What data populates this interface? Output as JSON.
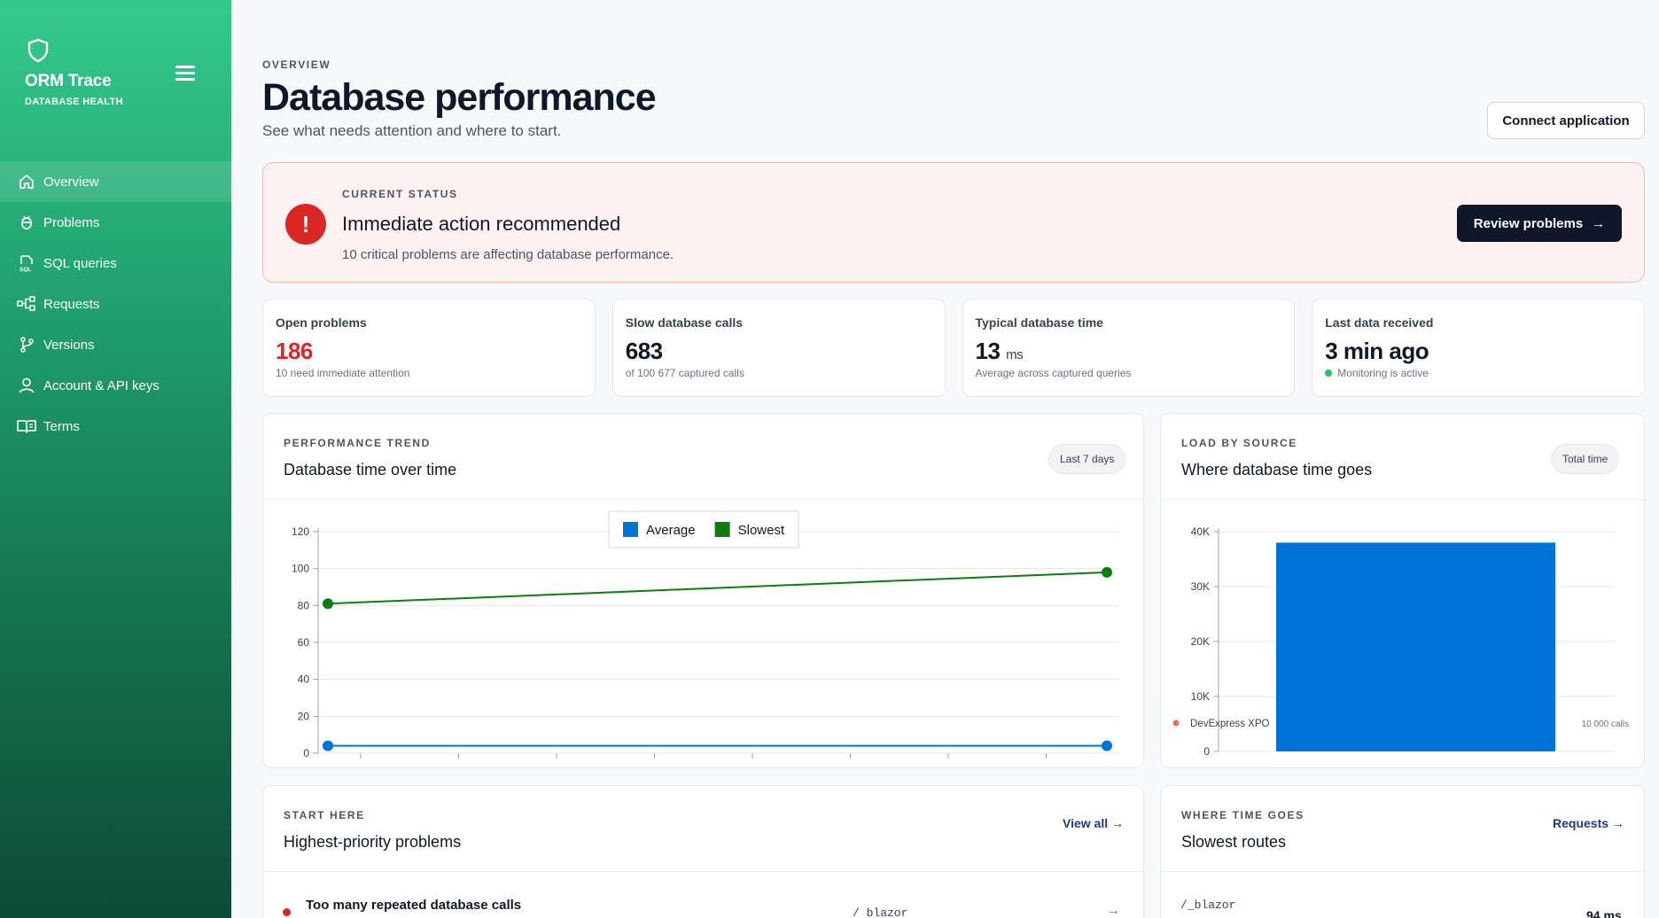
{
  "brand": {
    "name": "ORM Trace",
    "subtitle": "DATABASE HEALTH"
  },
  "nav": [
    {
      "label": "Overview",
      "icon": "home-icon"
    },
    {
      "label": "Problems",
      "icon": "bug-icon"
    },
    {
      "label": "SQL queries",
      "icon": "sql-icon"
    },
    {
      "label": "Requests",
      "icon": "requests-icon"
    },
    {
      "label": "Versions",
      "icon": "branch-icon"
    },
    {
      "label": "Account & API keys",
      "icon": "user-icon"
    },
    {
      "label": "Terms",
      "icon": "book-icon"
    }
  ],
  "header": {
    "eyebrow": "OVERVIEW",
    "title": "Database performance",
    "subtitle": "See what needs attention and where to start.",
    "connect_label": "Connect application"
  },
  "status": {
    "eyebrow": "CURRENT STATUS",
    "icon": "!",
    "title": "Immediate action recommended",
    "description": "10 critical problems are affecting database performance.",
    "button_label": "Review problems",
    "button_arrow": "→"
  },
  "kpis": [
    {
      "label": "Open problems",
      "value": "186",
      "unit": "",
      "sub": "10 need immediate attention"
    },
    {
      "label": "Slow database calls",
      "value": "683",
      "unit": "",
      "sub": "of 100 677 captured calls"
    },
    {
      "label": "Typical database time",
      "value": "13",
      "unit": "ms",
      "sub": "Average across captured queries"
    },
    {
      "label": "Last data received",
      "value": "3 min ago",
      "unit": "",
      "sub": "Monitoring is active"
    }
  ],
  "trend": {
    "eyebrow": "PERFORMANCE TREND",
    "title": "Database time over time",
    "pill": "Last 7 days",
    "chart_data": {
      "type": "line",
      "x": [
        0,
        1
      ],
      "series": [
        {
          "name": "Average",
          "values": [
            4,
            4
          ],
          "color": "#0074d9"
        },
        {
          "name": "Slowest",
          "values": [
            81,
            98
          ],
          "color": "#107c10"
        }
      ],
      "ylim": [
        0,
        120
      ],
      "yticks": [
        "120",
        "100",
        "80",
        "60",
        "40",
        "20",
        "0"
      ],
      "grid": true,
      "legend": "top-center"
    }
  },
  "load": {
    "eyebrow": "LOAD BY SOURCE",
    "title": "Where database time goes",
    "pill": "Total time",
    "chart_data": {
      "type": "bar",
      "categories": [
        "DevExpress XPO"
      ],
      "values": [
        38000
      ],
      "ylim": [
        0,
        40000
      ],
      "yticks": [
        "40K",
        "30K",
        "20K",
        "10K",
        "0"
      ],
      "color": "#0074d9",
      "annotation": "10 000 calls",
      "grid": true
    }
  },
  "problems": {
    "eyebrow": "START HERE",
    "title": "Highest-priority problems",
    "link": "View all →",
    "rows": [
      {
        "title": "Too many repeated database calls",
        "route": "/ blazor",
        "arrow": "→"
      }
    ]
  },
  "routes": {
    "eyebrow": "WHERE TIME GOES",
    "title": "Slowest routes",
    "link": "Requests →",
    "rows": [
      {
        "route": "/_blazor",
        "ms": "94 ms"
      }
    ]
  }
}
